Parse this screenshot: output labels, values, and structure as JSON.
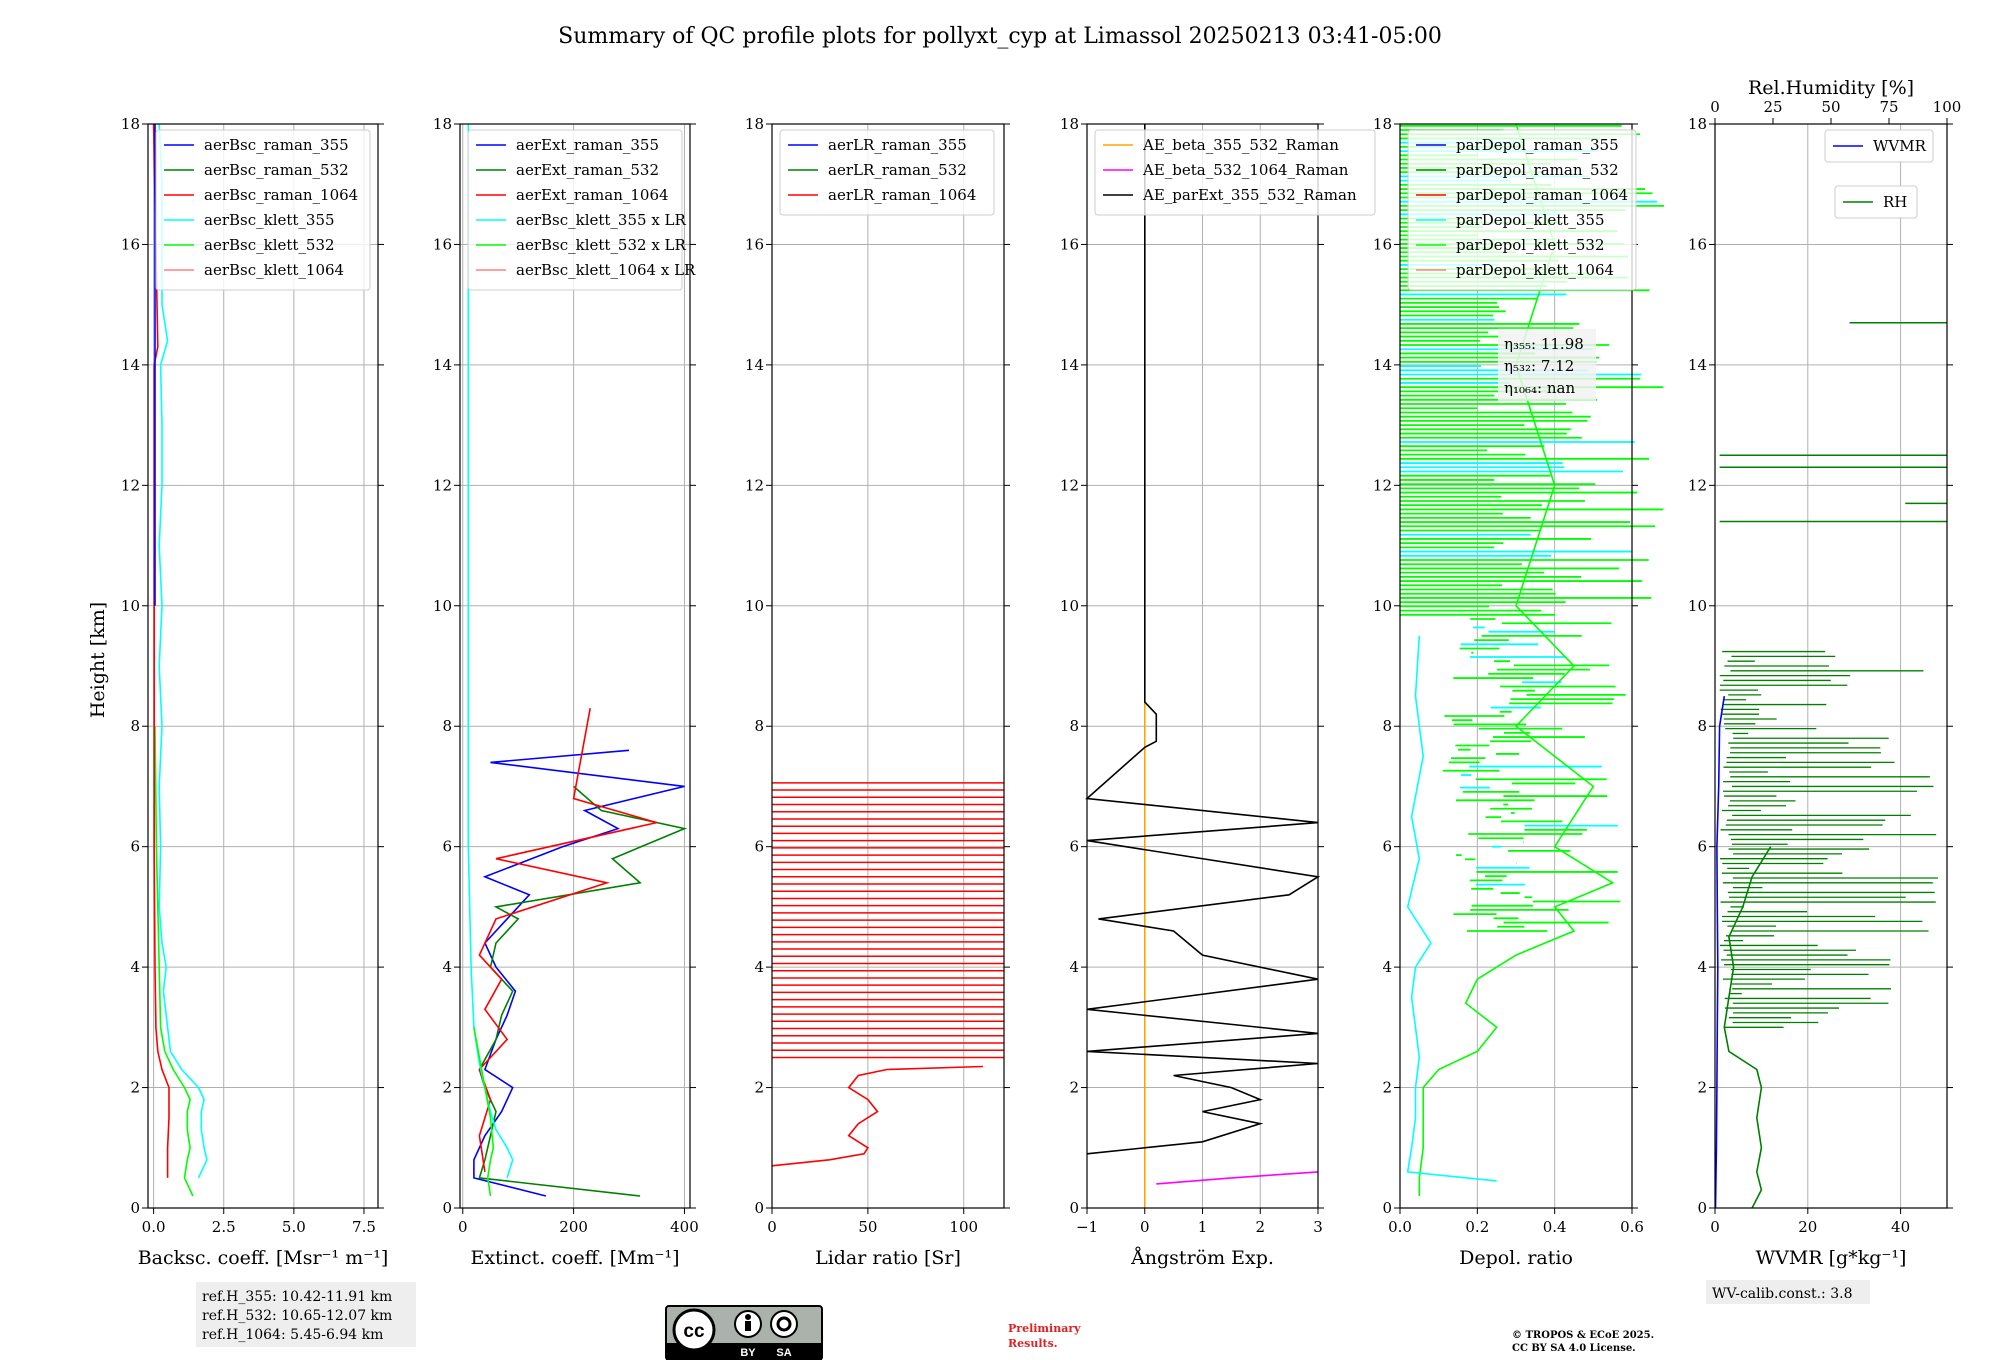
{
  "chart_data": {
    "type": "line",
    "title": "Summary of QC profile plots for pollyxt_cyp at Limassol 20250213 03:41-05:00",
    "ylabel": "Height [km]",
    "ylim": [
      0,
      18
    ],
    "yticks": [
      0,
      2,
      4,
      6,
      8,
      10,
      12,
      14,
      16,
      18
    ],
    "panels": [
      {
        "id": "bsc",
        "xlabel": "Backsc. coeff. [Msr⁻¹ m⁻¹]",
        "xlim": [
          -0.2,
          8.0
        ],
        "xticks": [
          0.0,
          2.5,
          5.0,
          7.5
        ],
        "xticklabels": [
          "0.0",
          "2.5",
          "5.0",
          "7.5"
        ],
        "legend": [
          "aerBsc_raman_355",
          "aerBsc_raman_532",
          "aerBsc_raman_1064",
          "aerBsc_klett_355",
          "aerBsc_klett_532",
          "aerBsc_klett_1064"
        ],
        "series": [
          {
            "name": "aerBsc_klett_355",
            "color": "#00ffff",
            "y": [
              0.5,
              0.8,
              1.0,
              1.3,
              1.6,
              1.8,
              2.0,
              2.3,
              2.6,
              3.0,
              3.6,
              4.0,
              4.4,
              5.0,
              6.0,
              7.0,
              8.0,
              9.0,
              10.0,
              11.0,
              12.0,
              13.0,
              14.0,
              14.4,
              15.0,
              16.0,
              17.0,
              18.0
            ],
            "x": [
              1.6,
              1.9,
              1.8,
              1.7,
              1.7,
              1.8,
              1.6,
              1.0,
              0.6,
              0.5,
              0.35,
              0.45,
              0.3,
              0.2,
              0.25,
              0.2,
              0.3,
              0.2,
              0.3,
              0.2,
              0.3,
              0.3,
              0.25,
              0.5,
              0.3,
              0.3,
              0.3,
              0.2
            ]
          },
          {
            "name": "aerBsc_klett_532",
            "color": "#00ff00",
            "y": [
              0.2,
              0.5,
              0.8,
              1.0,
              1.3,
              1.6,
              1.8,
              2.0,
              2.3,
              2.6,
              3.0,
              4.0,
              6.0,
              8.0
            ],
            "x": [
              1.4,
              1.1,
              1.2,
              1.3,
              1.2,
              1.2,
              1.3,
              1.1,
              0.7,
              0.4,
              0.25,
              0.2,
              0.1,
              0.05
            ]
          },
          {
            "name": "aerBsc_raman_1064",
            "color": "#ff0000",
            "y": [
              0.5,
              1.0,
              1.5,
              2.0,
              2.3,
              2.6,
              3.0,
              4.0,
              6.0,
              10.0,
              14.0,
              14.3,
              18.0
            ],
            "x": [
              0.5,
              0.5,
              0.55,
              0.55,
              0.3,
              0.15,
              0.08,
              0.05,
              0.02,
              0.02,
              0.02,
              0.15,
              0.0
            ]
          },
          {
            "name": "aerBsc_raman_355",
            "color": "#0000ff",
            "y": [
              10.0,
              14.0,
              18.0
            ],
            "x": [
              0.05,
              0.05,
              0.05
            ]
          }
        ]
      },
      {
        "id": "ext",
        "xlabel": "Extinct. coeff. [Mm⁻¹]",
        "xlim": [
          -5,
          410
        ],
        "xticks": [
          0,
          200,
          400
        ],
        "xticklabels": [
          "0",
          "200",
          "400"
        ],
        "legend": [
          "aerExt_raman_355",
          "aerExt_raman_532",
          "aerExt_raman_1064",
          "aerBsc_klett_355 x LR",
          "aerBsc_klett_532 x LR",
          "aerBsc_klett_1064 x LR"
        ],
        "series": [
          {
            "name": "aerExt_raman_355",
            "color": "#0000ff",
            "y": [
              0.2,
              0.5,
              0.8,
              1.2,
              1.6,
              2.0,
              2.3,
              2.8,
              3.2,
              3.6,
              4.0,
              4.4,
              4.8,
              5.2,
              5.5,
              6.0,
              6.3,
              6.6,
              7.0,
              7.4,
              7.6
            ],
            "x": [
              150,
              20,
              20,
              40,
              70,
              90,
              40,
              60,
              80,
              95,
              60,
              40,
              80,
              120,
              40,
              180,
              280,
              220,
              400,
              50,
              300
            ]
          },
          {
            "name": "aerExt_raman_532",
            "color": "#008000",
            "y": [
              0.2,
              0.5,
              0.8,
              1.2,
              1.6,
              2.0,
              2.3,
              2.8,
              3.2,
              3.6,
              4.0,
              4.4,
              4.8,
              5.0,
              5.4,
              5.8,
              6.3,
              6.6,
              7.0
            ],
            "x": [
              320,
              30,
              40,
              50,
              60,
              40,
              30,
              60,
              70,
              90,
              50,
              60,
              100,
              60,
              320,
              270,
              400,
              250,
              200
            ]
          },
          {
            "name": "aerExt_raman_1064",
            "color": "#ff0000",
            "y": [
              0.6,
              1.2,
              1.8,
              2.3,
              2.8,
              3.3,
              3.8,
              4.2,
              4.8,
              5.4,
              5.8,
              6.4,
              6.8,
              8.3
            ],
            "x": [
              40,
              30,
              50,
              30,
              80,
              40,
              70,
              30,
              60,
              260,
              60,
              350,
              200,
              230
            ]
          },
          {
            "name": "aerBsc_klett_355 x LR",
            "color": "#00ffff",
            "y": [
              0.5,
              0.8,
              1.0,
              1.3,
              1.6,
              2.0,
              2.4,
              3.0,
              4.0,
              6.0,
              8.0,
              10.0,
              12.0,
              14.0,
              16.0,
              18.0
            ],
            "x": [
              80,
              90,
              80,
              60,
              50,
              40,
              30,
              20,
              15,
              10,
              10,
              10,
              10,
              10,
              10,
              10
            ]
          },
          {
            "name": "aerBsc_klett_532 x LR",
            "color": "#00ff00",
            "y": [
              0.2,
              0.5,
              0.8,
              1.0,
              1.5,
              2.0,
              2.5,
              3.0
            ],
            "x": [
              50,
              45,
              50,
              55,
              50,
              40,
              30,
              20
            ]
          }
        ]
      },
      {
        "id": "lr",
        "xlabel": "Lidar ratio [Sr]",
        "xlim": [
          0,
          121
        ],
        "xticks": [
          0,
          50,
          100
        ],
        "xticklabels": [
          "0",
          "50",
          "100"
        ],
        "legend": [
          "aerLR_raman_355",
          "aerLR_raman_532",
          "aerLR_raman_1064"
        ],
        "series": [
          {
            "name": "aerLR_raman_1064",
            "color": "#ff0000",
            "y": [
              0.7,
              0.8,
              0.9,
              1.0,
              1.2,
              1.4,
              1.6,
              1.8,
              2.0,
              2.2,
              2.3,
              2.35
            ],
            "x": [
              0,
              30,
              48,
              50,
              40,
              45,
              55,
              50,
              40,
              45,
              60,
              110
            ]
          }
        ]
      },
      {
        "id": "ae",
        "xlabel": "Ångström Exp.",
        "xlim": [
          -1,
          3
        ],
        "xticks": [
          -1,
          0,
          1,
          2,
          3
        ],
        "xticklabels": [
          "−1",
          "0",
          "1",
          "2",
          "3"
        ],
        "legend": [
          "AE_beta_355_532_Raman",
          "AE_beta_532_1064_Raman",
          "AE_parExt_355_532_Raman"
        ],
        "series": [
          {
            "name": "AE_beta_355_532_Raman",
            "color": "#ffa500",
            "y": [
              0.0,
              8.4
            ],
            "x": [
              0.0,
              0.0
            ]
          },
          {
            "name": "AE_beta_532_1064_Raman",
            "color": "#ff00ff",
            "y": [
              0.4,
              0.5,
              0.6
            ],
            "x": [
              0.2,
              1.5,
              3.0
            ]
          },
          {
            "name": "AE_parExt_355_532_Raman",
            "color": "#000000",
            "y": [
              0.9,
              1.1,
              1.4,
              1.6,
              1.8,
              2.0,
              2.2,
              2.4,
              2.6,
              2.9,
              3.3,
              3.8,
              4.2,
              4.6,
              4.8,
              5.2,
              5.5,
              6.1,
              6.4,
              6.8,
              7.65,
              7.75,
              8.2,
              8.4,
              10.0,
              14.0,
              18.0
            ],
            "x": [
              -1,
              1.0,
              2.0,
              1.0,
              2.0,
              1.5,
              0.5,
              3.0,
              -1,
              3.0,
              -1,
              3.0,
              1.0,
              0.5,
              -0.8,
              2.5,
              3.0,
              -1,
              3.0,
              -1,
              0.0,
              0.2,
              0.2,
              0.0,
              0.0,
              0.0,
              0.0
            ]
          }
        ]
      },
      {
        "id": "dep",
        "xlabel": "Depol. ratio",
        "xlim": [
          0,
          0.6
        ],
        "xticks": [
          0.0,
          0.2,
          0.4,
          0.6
        ],
        "xticklabels": [
          "0.0",
          "0.2",
          "0.4",
          "0.6"
        ],
        "legend": [
          "parDepol_raman_355",
          "parDepol_raman_532",
          "parDepol_raman_1064",
          "parDepol_klett_355",
          "parDepol_klett_532",
          "parDepol_klett_1064"
        ],
        "eta_labels": [
          "η₃₅₅: 11.98",
          "η₅₃₂: 7.12",
          "η₁₀₆₄: nan"
        ],
        "series": [
          {
            "name": "parDepol_klett_532",
            "color": "#00ff00",
            "y": [
              0.2,
              0.5,
              1.0,
              1.5,
              2.0,
              2.3,
              2.6,
              3.0,
              3.4,
              3.8,
              4.2,
              4.6,
              5.0,
              5.4,
              6.0,
              7.0,
              8.0,
              9.0,
              10.0,
              12.0,
              14.0,
              16.0,
              18.0
            ],
            "x": [
              0.05,
              0.05,
              0.06,
              0.06,
              0.06,
              0.1,
              0.2,
              0.25,
              0.17,
              0.2,
              0.3,
              0.45,
              0.4,
              0.55,
              0.4,
              0.5,
              0.3,
              0.45,
              0.3,
              0.4,
              0.3,
              0.4,
              0.3
            ]
          },
          {
            "name": "parDepol_klett_355",
            "color": "#00ffff",
            "y": [
              0.45,
              0.6,
              1.0,
              1.5,
              2.0,
              2.5,
              3.0,
              3.5,
              4.0,
              4.4,
              5.0,
              5.8,
              6.5,
              7.5,
              8.5,
              9.5
            ],
            "x": [
              0.25,
              0.02,
              0.03,
              0.04,
              0.04,
              0.05,
              0.04,
              0.03,
              0.04,
              0.08,
              0.02,
              0.05,
              0.03,
              0.06,
              0.04,
              0.05
            ]
          }
        ]
      },
      {
        "id": "wv",
        "xlabel": "WVMR [g*kg⁻¹]",
        "xlim": [
          0,
          50
        ],
        "xticks": [
          0,
          20,
          40
        ],
        "xticklabels": [
          "0",
          "20",
          "40"
        ],
        "top_label": "Rel.Humidity [%]",
        "top_xlim": [
          0,
          100
        ],
        "top_xticks": [
          0,
          25,
          50,
          75,
          100
        ],
        "top_xticklabels": [
          "0",
          "25",
          "50",
          "75",
          "100"
        ],
        "legend_wvmr": "WVMR",
        "legend_rh": "RH",
        "series": [
          {
            "name": "WVMR",
            "color": "#0000ff",
            "y": [
              0.0,
              1.0,
              2.0,
              3.0,
              4.0,
              5.0,
              6.0,
              7.0,
              8.0,
              8.5
            ],
            "x": [
              0.1,
              0.3,
              0.4,
              0.5,
              0.6,
              0.5,
              0.4,
              0.8,
              1.0,
              2.0
            ]
          },
          {
            "name": "RH",
            "color": "#008000",
            "y": [
              0.0,
              0.3,
              0.6,
              1.0,
              1.5,
              2.0,
              2.3,
              2.6,
              3.0,
              3.5,
              4.0,
              4.5,
              5.0,
              5.5,
              6.0
            ],
            "x": [
              8,
              10,
              9,
              10,
              9,
              10,
              9,
              3,
              2,
              3,
              4,
              3,
              6,
              8,
              12
            ]
          }
        ]
      }
    ]
  },
  "annotations": {
    "refH_355": "ref.H_355: 10.42-11.91 km",
    "refH_532": "ref.H_532: 10.65-12.07 km",
    "refH_1064": "ref.H_1064: 5.45-6.94 km",
    "wv_calib": "WV-calib.const.: 3.8",
    "preliminary_1": "Preliminary",
    "preliminary_2": "Results.",
    "copyright_1": "© TROPOS & ECoE 2025.",
    "copyright_2": "CC BY SA 4.0 License.",
    "cc_text_by": "BY",
    "cc_text_sa": "SA",
    "cc_logo": "cc"
  },
  "colors": {
    "grid": "#b0b0b0",
    "preliminary": "#dd2222",
    "legend_bg": "#ffffff",
    "ann_bg": "#eeeeee"
  }
}
